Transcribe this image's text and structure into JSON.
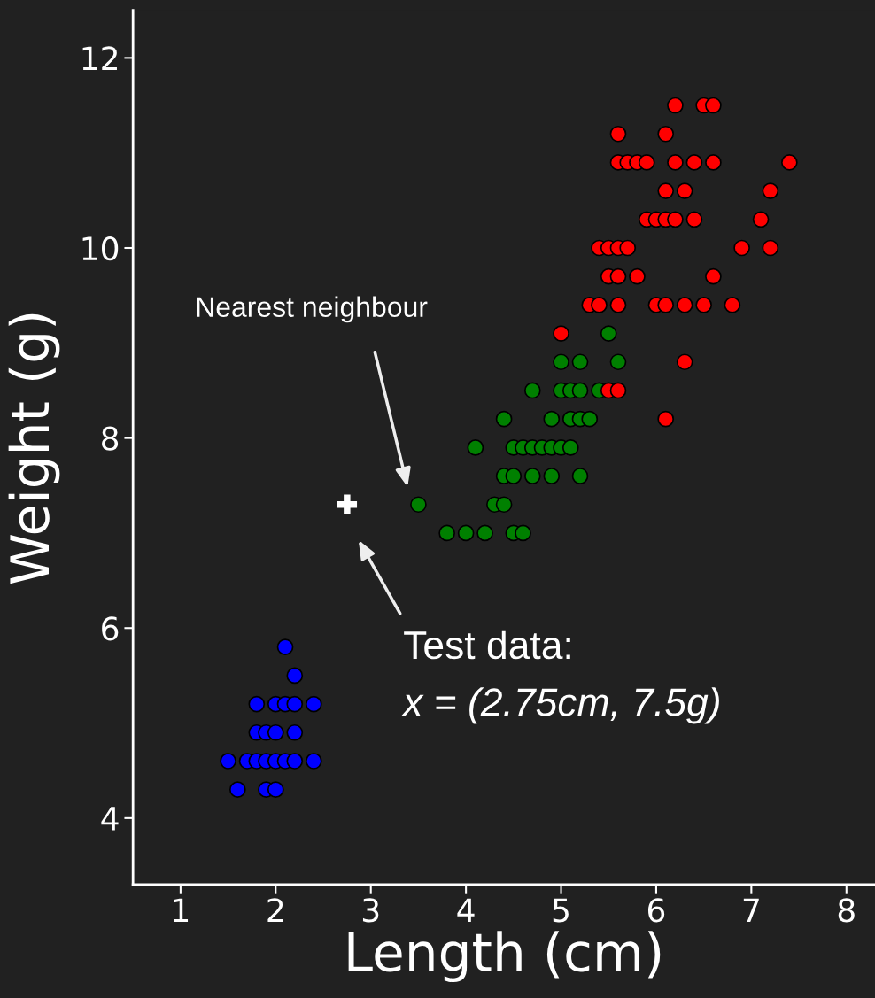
{
  "chart_data": {
    "type": "scatter",
    "xlabel": "Length (cm)",
    "ylabel": "Weight (g)",
    "xlim": [
      0.5,
      8.3
    ],
    "ylim": [
      3.3,
      12.5
    ],
    "xticks": [
      1,
      2,
      3,
      4,
      5,
      6,
      7,
      8
    ],
    "yticks": [
      4,
      6,
      8,
      10,
      12
    ],
    "grid": false,
    "legend": false,
    "marker": "circle",
    "series": [
      {
        "color": "#0000ff",
        "x": [
          2.1,
          2.2,
          1.8,
          2.0,
          2.1,
          2.2,
          2.4,
          1.8,
          1.9,
          2.0,
          2.2,
          1.5,
          1.7,
          1.8,
          1.9,
          2.0,
          2.1,
          2.2,
          2.4,
          1.6,
          1.9,
          2.0
        ],
        "values": [
          5.8,
          5.5,
          5.2,
          5.2,
          5.2,
          5.2,
          5.2,
          4.9,
          4.9,
          4.9,
          4.9,
          4.6,
          4.6,
          4.6,
          4.6,
          4.6,
          4.6,
          4.6,
          4.6,
          4.3,
          4.3,
          4.3
        ]
      },
      {
        "color": "#008000",
        "x": [
          5.5,
          5.0,
          5.2,
          5.6,
          4.7,
          5.0,
          5.1,
          5.2,
          5.4,
          4.4,
          4.9,
          5.1,
          5.2,
          5.3,
          4.1,
          4.5,
          4.6,
          4.7,
          4.8,
          4.9,
          5.0,
          5.1,
          4.4,
          4.5,
          4.7,
          4.9,
          5.2,
          3.5,
          4.3,
          4.4,
          3.8,
          4.0,
          4.2,
          4.5,
          4.6
        ],
        "values": [
          9.1,
          8.8,
          8.8,
          8.8,
          8.5,
          8.5,
          8.5,
          8.5,
          8.5,
          8.2,
          8.2,
          8.2,
          8.2,
          8.2,
          7.9,
          7.9,
          7.9,
          7.9,
          7.9,
          7.9,
          7.9,
          7.9,
          7.6,
          7.6,
          7.6,
          7.6,
          7.6,
          7.3,
          7.3,
          7.3,
          7.0,
          7.0,
          7.0,
          7.0,
          7.0
        ]
      },
      {
        "color": "#ff0000",
        "x": [
          6.2,
          6.5,
          6.6,
          5.6,
          6.1,
          5.6,
          5.7,
          5.8,
          5.9,
          6.2,
          6.4,
          6.6,
          7.4,
          6.1,
          6.3,
          7.2,
          5.9,
          6.0,
          6.1,
          6.2,
          6.4,
          7.1,
          5.4,
          5.5,
          5.6,
          5.7,
          6.9,
          7.2,
          5.5,
          5.6,
          5.8,
          6.6,
          5.3,
          5.4,
          5.6,
          6.0,
          6.1,
          6.3,
          6.5,
          6.8,
          5.0,
          6.3,
          5.5,
          5.6,
          6.1
        ],
        "values": [
          11.5,
          11.5,
          11.5,
          11.2,
          11.2,
          10.9,
          10.9,
          10.9,
          10.9,
          10.9,
          10.9,
          10.9,
          10.9,
          10.6,
          10.6,
          10.6,
          10.3,
          10.3,
          10.3,
          10.3,
          10.3,
          10.3,
          10.0,
          10.0,
          10.0,
          10.0,
          10.0,
          10.0,
          9.7,
          9.7,
          9.7,
          9.7,
          9.4,
          9.4,
          9.4,
          9.4,
          9.4,
          9.4,
          9.4,
          9.4,
          9.1,
          8.8,
          8.5,
          8.5,
          8.2
        ]
      },
      {
        "color": "#ffffff",
        "marker": "cross",
        "x": [
          2.75
        ],
        "values": [
          7.3
        ]
      }
    ],
    "annotations": [
      "Nearest neighbour",
      "Test data:\nx = (2.75cm, 7.5g)"
    ]
  }
}
